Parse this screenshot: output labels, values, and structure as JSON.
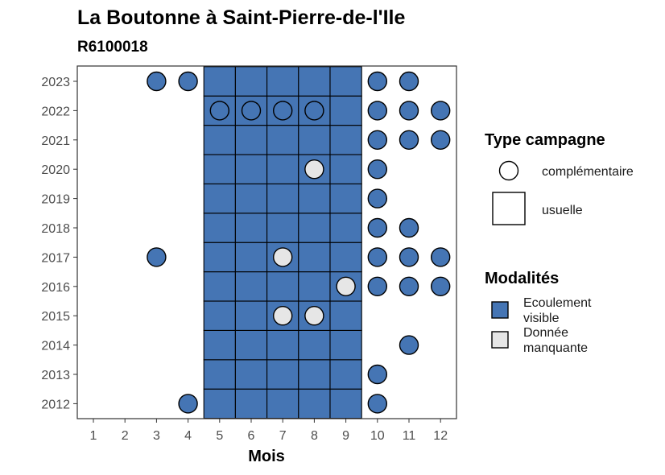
{
  "chart_data": {
    "type": "heatmap",
    "title": "La Boutonne à Saint-Pierre-de-l'Ile",
    "subtitle": "R6100018",
    "xlabel": "Mois",
    "ylabel": "",
    "x_ticks": [
      "1",
      "2",
      "3",
      "4",
      "5",
      "6",
      "7",
      "8",
      "9",
      "10",
      "11",
      "12"
    ],
    "y_ticks": [
      "2012",
      "2013",
      "2014",
      "2015",
      "2016",
      "2017",
      "2018",
      "2019",
      "2020",
      "2021",
      "2022",
      "2023"
    ],
    "grid": false,
    "legend_position": "right",
    "legend_type": {
      "title": "Type campagne",
      "entries": [
        {
          "key": "complementaire",
          "label": "complémentaire",
          "shape": "circle"
        },
        {
          "key": "usuelle",
          "label": "usuelle",
          "shape": "square"
        }
      ]
    },
    "legend_modalites": {
      "title": "Modalités",
      "entries": [
        {
          "key": "ecoulement",
          "label": [
            "Ecoulement",
            "visible"
          ],
          "color": "#4575b4"
        },
        {
          "key": "manquante",
          "label": [
            "Donnée",
            "manquante"
          ],
          "color": "#e6e6e6"
        }
      ]
    },
    "usuelle_months": [
      5,
      6,
      7,
      8,
      9
    ],
    "usuelle_years": [
      2012,
      2013,
      2014,
      2015,
      2016,
      2017,
      2018,
      2019,
      2020,
      2021,
      2022,
      2023
    ],
    "points": [
      {
        "year": 2023,
        "month": 3,
        "shape": "circle",
        "modalite": "ecoulement"
      },
      {
        "year": 2023,
        "month": 4,
        "shape": "circle",
        "modalite": "ecoulement"
      },
      {
        "year": 2023,
        "month": 10,
        "shape": "circle",
        "modalite": "ecoulement"
      },
      {
        "year": 2023,
        "month": 11,
        "shape": "circle",
        "modalite": "ecoulement"
      },
      {
        "year": 2022,
        "month": 5,
        "shape": "circle",
        "modalite": "ecoulement"
      },
      {
        "year": 2022,
        "month": 6,
        "shape": "circle",
        "modalite": "ecoulement"
      },
      {
        "year": 2022,
        "month": 7,
        "shape": "circle",
        "modalite": "ecoulement"
      },
      {
        "year": 2022,
        "month": 8,
        "shape": "circle",
        "modalite": "ecoulement"
      },
      {
        "year": 2022,
        "month": 10,
        "shape": "circle",
        "modalite": "ecoulement"
      },
      {
        "year": 2022,
        "month": 11,
        "shape": "circle",
        "modalite": "ecoulement"
      },
      {
        "year": 2022,
        "month": 12,
        "shape": "circle",
        "modalite": "ecoulement"
      },
      {
        "year": 2021,
        "month": 10,
        "shape": "circle",
        "modalite": "ecoulement"
      },
      {
        "year": 2021,
        "month": 11,
        "shape": "circle",
        "modalite": "ecoulement"
      },
      {
        "year": 2021,
        "month": 12,
        "shape": "circle",
        "modalite": "ecoulement"
      },
      {
        "year": 2020,
        "month": 8,
        "shape": "circle",
        "modalite": "manquante"
      },
      {
        "year": 2020,
        "month": 10,
        "shape": "circle",
        "modalite": "ecoulement"
      },
      {
        "year": 2019,
        "month": 10,
        "shape": "circle",
        "modalite": "ecoulement"
      },
      {
        "year": 2018,
        "month": 10,
        "shape": "circle",
        "modalite": "ecoulement"
      },
      {
        "year": 2018,
        "month": 11,
        "shape": "circle",
        "modalite": "ecoulement"
      },
      {
        "year": 2017,
        "month": 3,
        "shape": "circle",
        "modalite": "ecoulement"
      },
      {
        "year": 2017,
        "month": 7,
        "shape": "circle",
        "modalite": "manquante"
      },
      {
        "year": 2017,
        "month": 10,
        "shape": "circle",
        "modalite": "ecoulement"
      },
      {
        "year": 2017,
        "month": 11,
        "shape": "circle",
        "modalite": "ecoulement"
      },
      {
        "year": 2017,
        "month": 12,
        "shape": "circle",
        "modalite": "ecoulement"
      },
      {
        "year": 2016,
        "month": 9,
        "shape": "circle",
        "modalite": "manquante"
      },
      {
        "year": 2016,
        "month": 10,
        "shape": "circle",
        "modalite": "ecoulement"
      },
      {
        "year": 2016,
        "month": 11,
        "shape": "circle",
        "modalite": "ecoulement"
      },
      {
        "year": 2016,
        "month": 12,
        "shape": "circle",
        "modalite": "ecoulement"
      },
      {
        "year": 2015,
        "month": 7,
        "shape": "circle",
        "modalite": "manquante"
      },
      {
        "year": 2015,
        "month": 8,
        "shape": "circle",
        "modalite": "manquante"
      },
      {
        "year": 2014,
        "month": 11,
        "shape": "circle",
        "modalite": "ecoulement"
      },
      {
        "year": 2013,
        "month": 10,
        "shape": "circle",
        "modalite": "ecoulement"
      },
      {
        "year": 2012,
        "month": 4,
        "shape": "circle",
        "modalite": "ecoulement"
      },
      {
        "year": 2012,
        "month": 10,
        "shape": "circle",
        "modalite": "ecoulement"
      }
    ],
    "colors": {
      "ecoulement": "#4575b4",
      "manquante": "#e6e6e6",
      "outline": "#000000",
      "panel_border": "#333333",
      "tick": "#4d4d4d"
    }
  }
}
